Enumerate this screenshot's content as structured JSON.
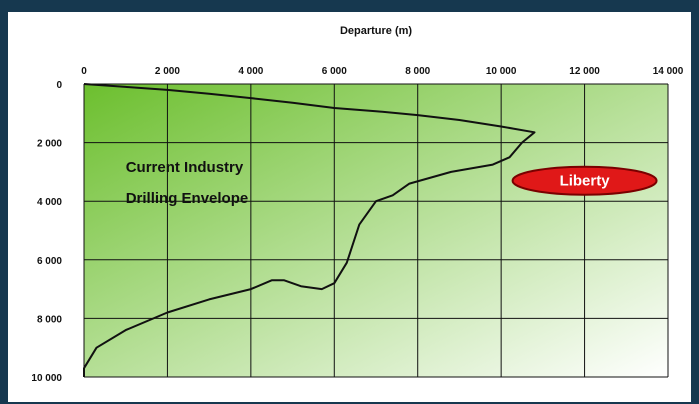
{
  "chart_data": {
    "type": "line",
    "xlabel": "Departure (m)",
    "x_axis_position": "top",
    "y_axis_inverted": true,
    "xlim": [
      0,
      14000
    ],
    "ylim": [
      0,
      10000
    ],
    "xticks": [
      0,
      2000,
      4000,
      6000,
      8000,
      10000,
      12000,
      14000
    ],
    "xtick_labels": [
      "0",
      "2 000",
      "4 000",
      "6 000",
      "8 000",
      "10 000",
      "12 000",
      "14 000"
    ],
    "yticks": [
      0,
      2000,
      4000,
      6000,
      8000,
      10000
    ],
    "ytick_labels": [
      "0",
      "2 000",
      "4 000",
      "6 000",
      "8 000",
      "10 000"
    ],
    "grid": true,
    "fill_colors": {
      "strong": "#6cbf2e",
      "light": "#ffffff"
    },
    "envelope": {
      "label_lines": [
        "Current Industry",
        "Drilling Envelope"
      ],
      "points": [
        [
          0,
          0
        ],
        [
          1000,
          100
        ],
        [
          2000,
          200
        ],
        [
          3000,
          330
        ],
        [
          4000,
          480
        ],
        [
          5000,
          640
        ],
        [
          6000,
          820
        ],
        [
          7000,
          930
        ],
        [
          8000,
          1060
        ],
        [
          9000,
          1230
        ],
        [
          10000,
          1450
        ],
        [
          10800,
          1650
        ],
        [
          10500,
          2000
        ],
        [
          10200,
          2500
        ],
        [
          9800,
          2750
        ],
        [
          8800,
          3000
        ],
        [
          7800,
          3400
        ],
        [
          7400,
          3800
        ],
        [
          7000,
          4000
        ],
        [
          6600,
          4800
        ],
        [
          6300,
          6100
        ],
        [
          6000,
          6800
        ],
        [
          5700,
          7000
        ],
        [
          5200,
          6900
        ],
        [
          4800,
          6700
        ],
        [
          4500,
          6700
        ],
        [
          4000,
          7000
        ],
        [
          3000,
          7350
        ],
        [
          2000,
          7800
        ],
        [
          1000,
          8400
        ],
        [
          300,
          9000
        ],
        [
          0,
          9700
        ],
        [
          0,
          10000
        ]
      ]
    },
    "annotation": {
      "label": "Liberty",
      "x": 12000,
      "y": 3300,
      "fill": "#e01818",
      "stroke": "#7a0000"
    }
  }
}
